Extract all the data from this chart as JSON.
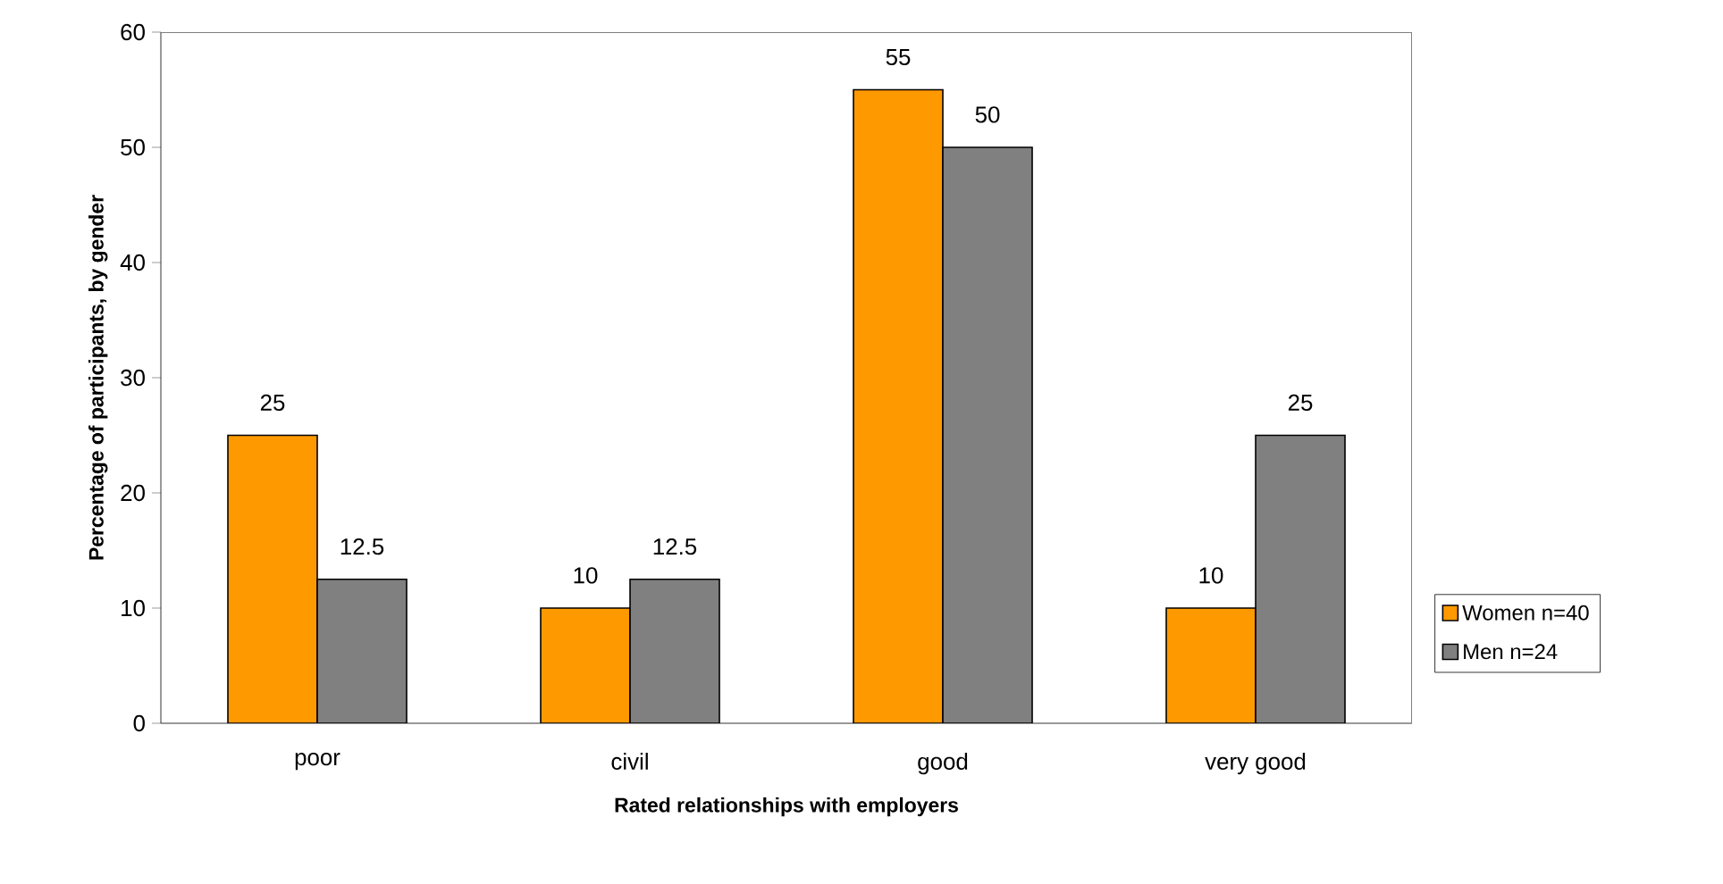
{
  "chart_data": {
    "type": "bar",
    "xlabel": "Rated relationships with employers",
    "ylabel": "Percentage of participants, by gender",
    "categories": [
      "poor",
      "civil",
      "good",
      "very good"
    ],
    "series": [
      {
        "name": "Women n=40",
        "color": "#ff9900",
        "values": [
          25,
          10,
          55,
          10
        ]
      },
      {
        "name": "Men n=24",
        "color": "#808080",
        "values": [
          12.5,
          12.5,
          50,
          25
        ]
      }
    ],
    "ylim": [
      0,
      60
    ],
    "yticks": [
      0,
      10,
      20,
      30,
      40,
      50,
      60
    ],
    "grid": false,
    "legend": "right",
    "data_labels": true
  }
}
